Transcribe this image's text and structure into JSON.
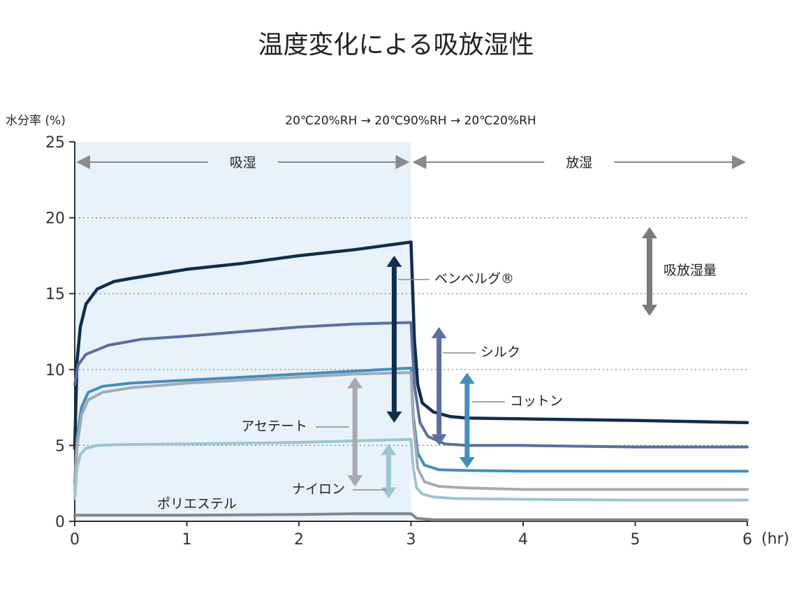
{
  "chart_data": {
    "type": "line",
    "title": "温度変化による吸放湿性",
    "subtitle": "20℃20%RH → 20℃90%RH → 20℃20%RH",
    "ylabel": "水分率 (%)",
    "xunit": "(hr)",
    "ylim": [
      0,
      25
    ],
    "xlim": [
      0,
      6
    ],
    "yticks": [
      0,
      5,
      10,
      15,
      20,
      25
    ],
    "xticks": [
      0,
      1,
      2,
      3,
      4,
      5,
      6
    ],
    "grid": "dotted horizontal",
    "phases": [
      {
        "label": "吸湿",
        "x": [
          0,
          3
        ]
      },
      {
        "label": "放湿",
        "x": [
          3,
          6
        ]
      }
    ],
    "legend_label": "吸放湿量",
    "series": [
      {
        "name": "ベンベルグ®",
        "color": "#0f2d4e",
        "x": [
          0,
          0.02,
          0.05,
          0.1,
          0.2,
          0.35,
          0.5,
          1,
          1.5,
          2,
          2.5,
          3,
          3.03,
          3.06,
          3.1,
          3.2,
          3.35,
          3.5,
          4,
          5,
          6
        ],
        "y": [
          4.8,
          10.5,
          12.8,
          14.3,
          15.3,
          15.8,
          16.0,
          16.6,
          17.0,
          17.5,
          17.9,
          18.4,
          12.0,
          9.0,
          7.8,
          7.2,
          6.9,
          6.8,
          6.75,
          6.65,
          6.5
        ]
      },
      {
        "name": "シルク",
        "color": "#5b6ea2",
        "x": [
          0,
          0.03,
          0.1,
          0.3,
          0.6,
          1,
          1.5,
          2,
          2.5,
          3,
          3.03,
          3.08,
          3.15,
          3.3,
          3.5,
          4,
          5,
          6
        ],
        "y": [
          9.0,
          10.3,
          11.0,
          11.6,
          12.0,
          12.2,
          12.5,
          12.8,
          13.0,
          13.1,
          9.0,
          6.5,
          5.6,
          5.1,
          5.0,
          5.0,
          4.9,
          4.9
        ]
      },
      {
        "name": "コットン",
        "color": "#3e8fc2",
        "x": [
          0,
          0.02,
          0.06,
          0.12,
          0.25,
          0.5,
          1,
          1.5,
          2,
          2.5,
          3,
          3.02,
          3.06,
          3.12,
          3.25,
          3.5,
          4,
          5,
          6
        ],
        "y": [
          2.5,
          5.5,
          7.5,
          8.5,
          8.9,
          9.1,
          9.3,
          9.5,
          9.7,
          9.9,
          10.1,
          7.0,
          4.5,
          3.7,
          3.4,
          3.35,
          3.3,
          3.3,
          3.3
        ]
      },
      {
        "name": "アセテート",
        "color": "#a9a9af",
        "x": [
          0,
          0.02,
          0.06,
          0.12,
          0.25,
          0.5,
          1,
          1.5,
          2,
          2.5,
          3,
          3.02,
          3.06,
          3.12,
          3.25,
          3.5,
          4,
          5,
          6
        ],
        "y": [
          2.0,
          4.8,
          7.0,
          8.0,
          8.5,
          8.8,
          9.1,
          9.3,
          9.5,
          9.7,
          9.8,
          6.5,
          3.5,
          2.6,
          2.3,
          2.2,
          2.1,
          2.1,
          2.1
        ]
      },
      {
        "name": "ナイロン",
        "color": "#9cc5d0",
        "x": [
          0,
          0.02,
          0.05,
          0.1,
          0.2,
          0.4,
          1,
          2,
          3,
          3.02,
          3.05,
          3.1,
          3.2,
          3.4,
          4,
          5,
          6
        ],
        "y": [
          1.5,
          3.5,
          4.4,
          4.8,
          5.0,
          5.05,
          5.1,
          5.2,
          5.4,
          3.5,
          2.2,
          1.8,
          1.6,
          1.5,
          1.45,
          1.4,
          1.4
        ]
      },
      {
        "name": "ポリエステル",
        "color": "#7f878a",
        "x": [
          0,
          1,
          2,
          2.5,
          3,
          3.05,
          3.2,
          4,
          5,
          6
        ],
        "y": [
          0.4,
          0.4,
          0.45,
          0.5,
          0.5,
          0.2,
          0.1,
          0.1,
          0.1,
          0.1
        ]
      }
    ],
    "ranges": [
      {
        "series": "ベンベルグ®",
        "from": 6.5,
        "to": 17.5,
        "x": 2.85
      },
      {
        "series": "シルク",
        "from": 5.0,
        "to": 12.8,
        "x": 3.25
      },
      {
        "series": "コットン",
        "from": 3.5,
        "to": 9.8,
        "x": 3.5
      },
      {
        "series": "アセテート",
        "from": 2.3,
        "to": 9.5,
        "x": 2.5
      },
      {
        "series": "ナイロン",
        "from": 1.5,
        "to": 5.1,
        "x": 2.8
      }
    ]
  }
}
